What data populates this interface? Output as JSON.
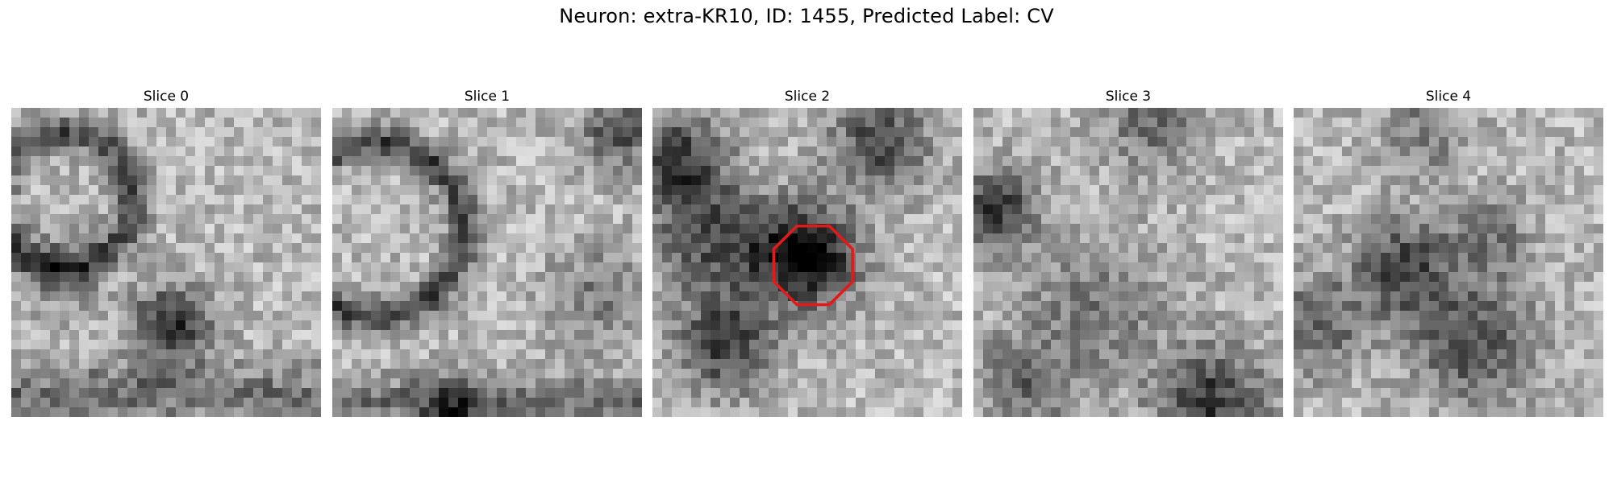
{
  "figure": {
    "title": "Neuron: extra-KR10, ID: 1455, Predicted Label: CV"
  },
  "colors": {
    "annotation": "#e31a1c",
    "background": "#ffffff"
  },
  "colormap": "gray",
  "grid_size": 32,
  "slices": [
    {
      "label": "Slice 0",
      "has_marker": false
    },
    {
      "label": "Slice 1",
      "has_marker": false
    },
    {
      "label": "Slice 2",
      "has_marker": true
    },
    {
      "label": "Slice 3",
      "has_marker": false
    },
    {
      "label": "Slice 4",
      "has_marker": false
    }
  ]
}
